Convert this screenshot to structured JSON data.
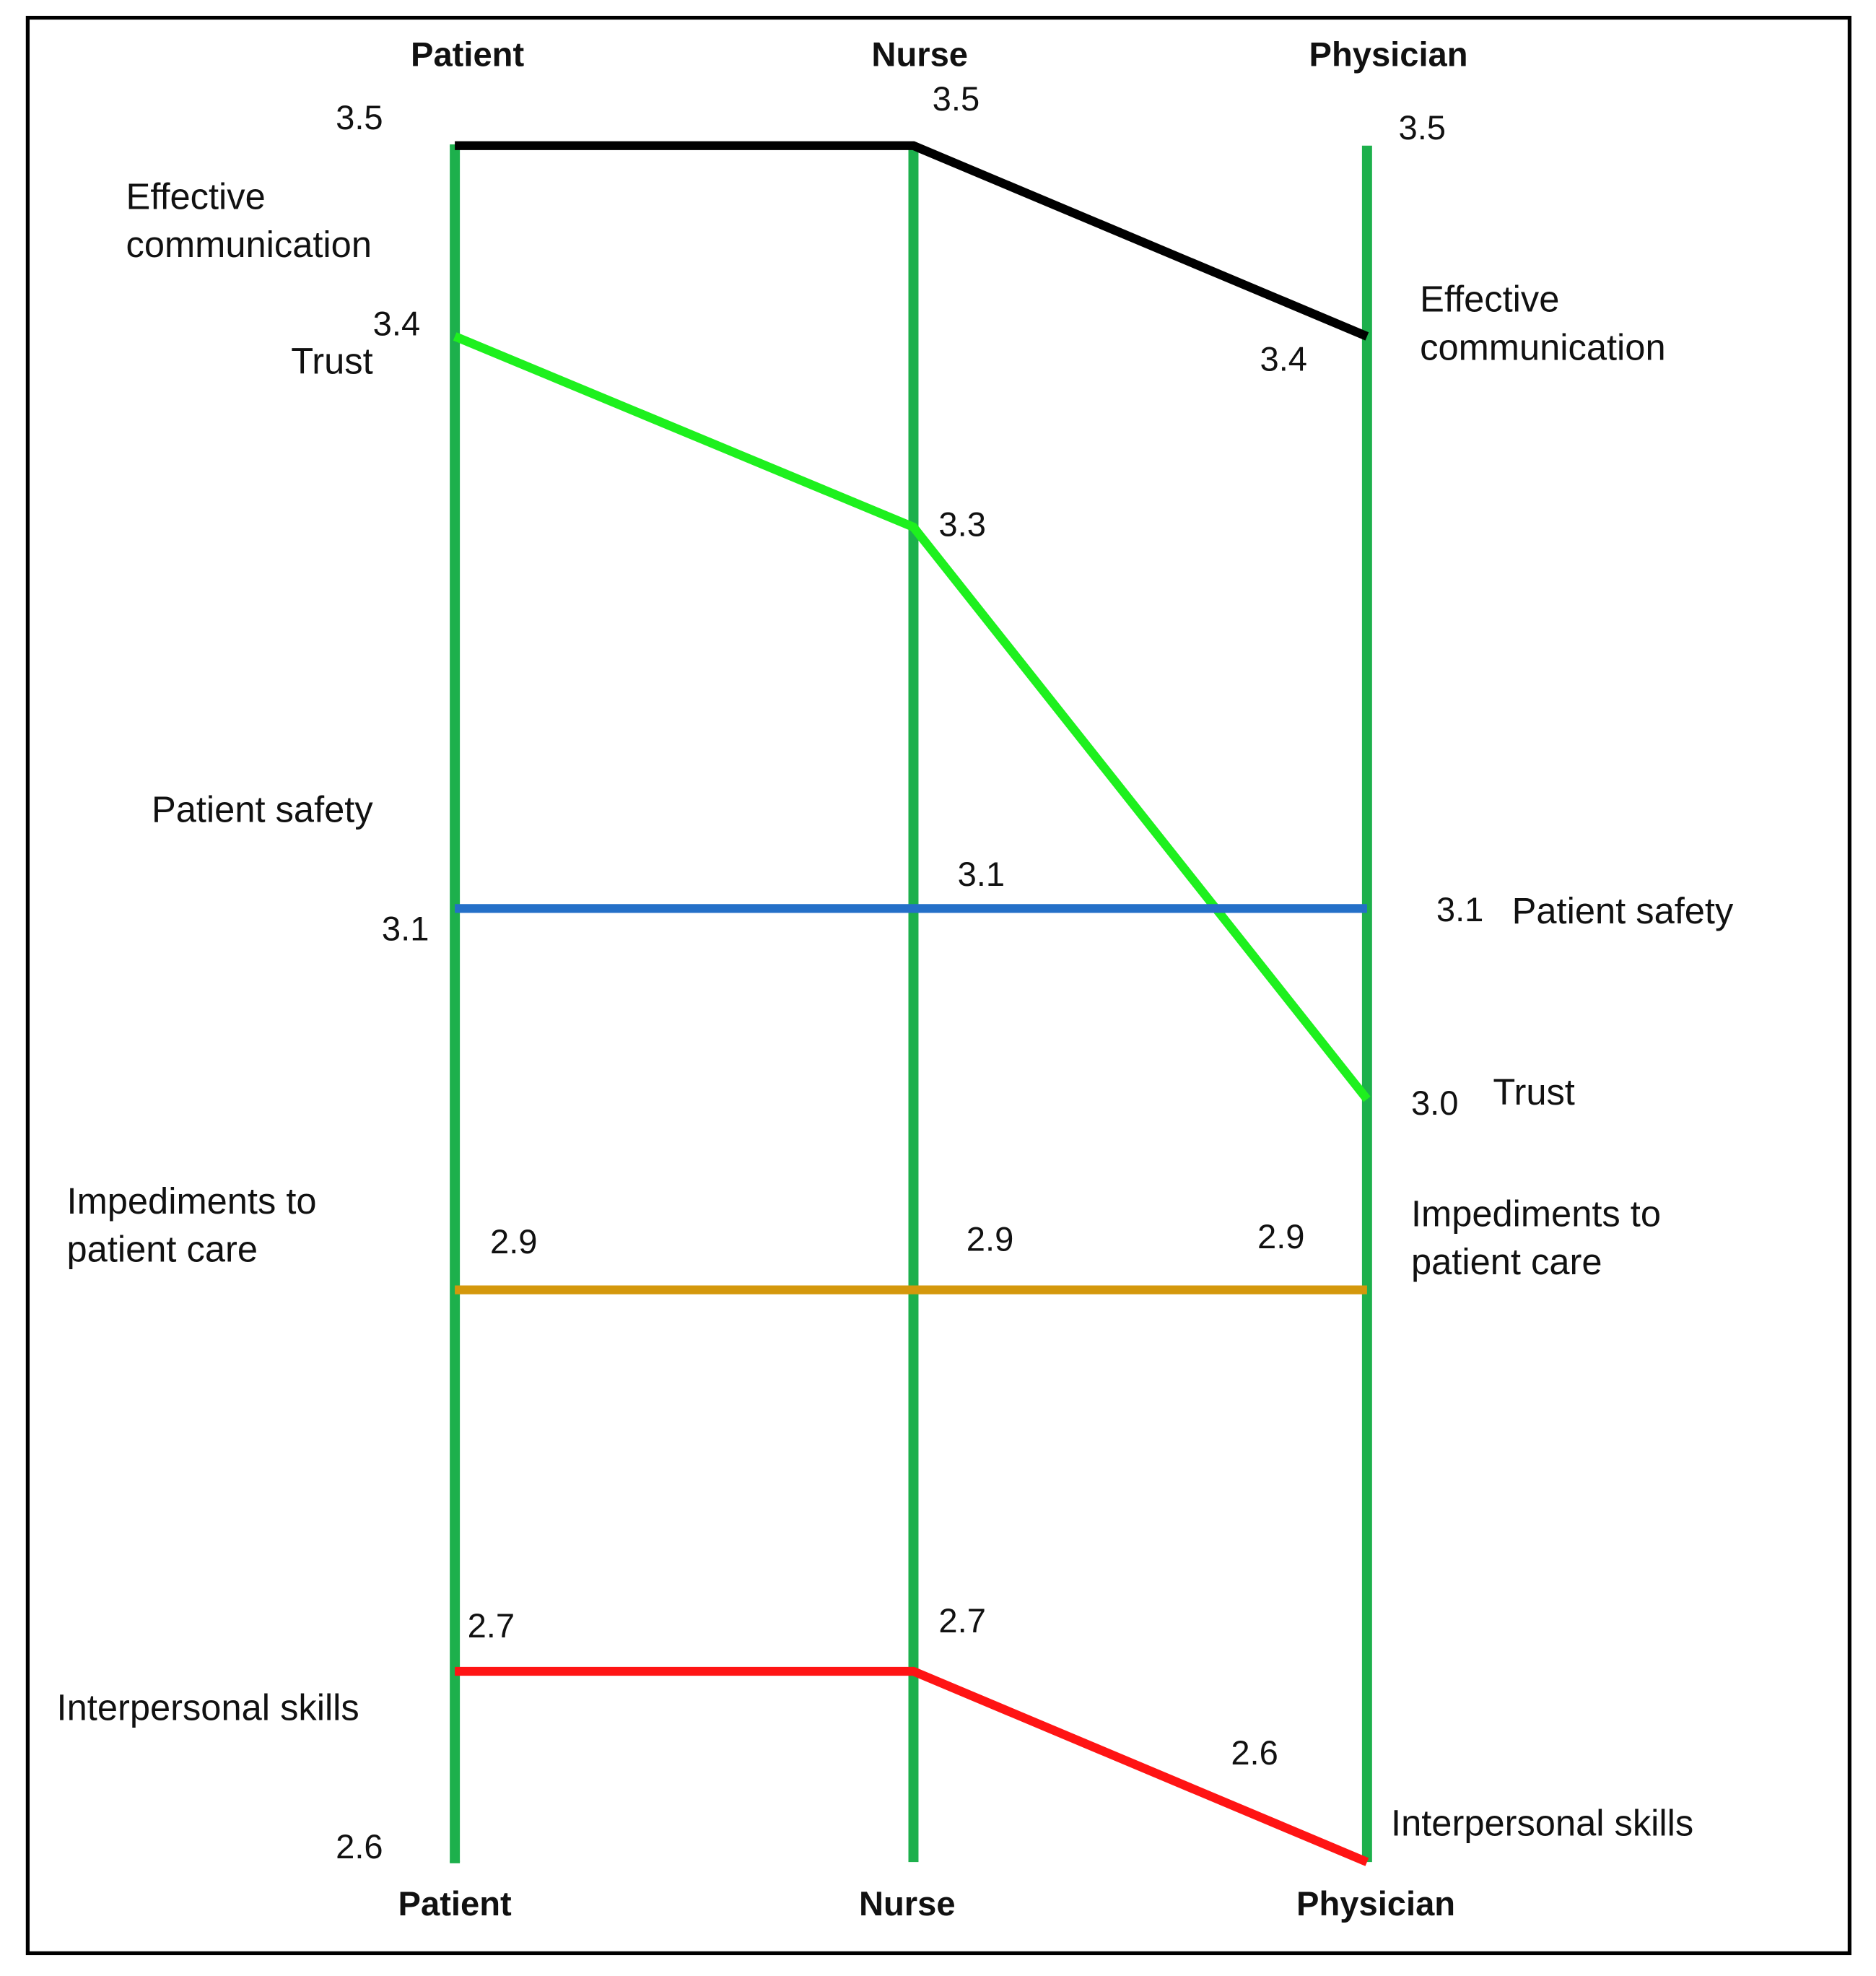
{
  "chart_data": {
    "type": "parallel",
    "categories": [
      "Patient",
      "Nurse",
      "Physician"
    ],
    "ylim": [
      2.6,
      3.5
    ],
    "yticks": [
      2.6,
      3.5
    ],
    "axis_color": "#1db04c",
    "series": [
      {
        "name": "Effective communication",
        "color": "#000000",
        "values": [
          3.5,
          3.5,
          3.4
        ]
      },
      {
        "name": "Trust",
        "color": "#1ef01e",
        "values": [
          3.4,
          3.3,
          3.0
        ],
        "value_labels": [
          "3.4",
          "3.3",
          "3.0"
        ]
      },
      {
        "name": "Patient safety",
        "color": "#2470c8",
        "values": [
          3.1,
          3.1,
          3.1
        ]
      },
      {
        "name": "Impediments to patient care",
        "color": "#d4980c",
        "values": [
          2.9,
          2.9,
          2.9
        ]
      },
      {
        "name": "Interpersonal skills",
        "color": "#ff1414",
        "values": [
          2.7,
          2.7,
          2.6
        ]
      }
    ]
  }
}
